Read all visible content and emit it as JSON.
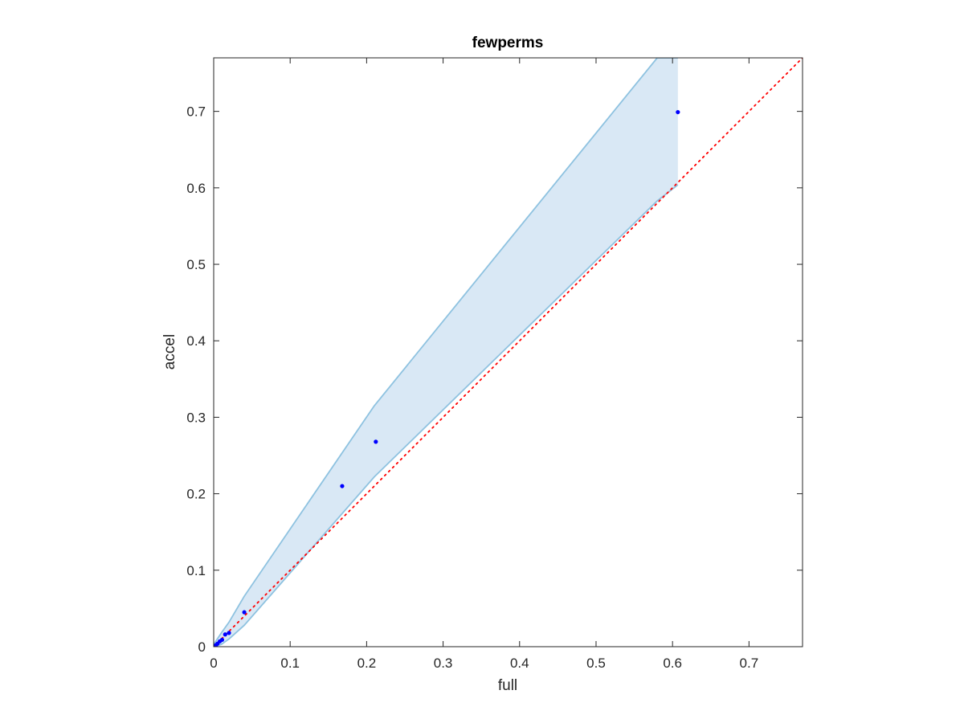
{
  "chart_data": {
    "type": "scatter",
    "title": "fewperms",
    "xlabel": "full",
    "ylabel": "accel",
    "xlim": [
      0,
      0.77
    ],
    "ylim": [
      0,
      0.77
    ],
    "xticks": [
      0,
      0.1,
      0.2,
      0.3,
      0.4,
      0.5,
      0.6,
      0.7
    ],
    "yticks": [
      0,
      0.1,
      0.2,
      0.3,
      0.4,
      0.5,
      0.6,
      0.7
    ],
    "xtick_labels": [
      "0",
      "0.1",
      "0.2",
      "0.3",
      "0.4",
      "0.5",
      "0.6",
      "0.7"
    ],
    "ytick_labels": [
      "0",
      "0.1",
      "0.2",
      "0.3",
      "0.4",
      "0.5",
      "0.6",
      "0.7"
    ],
    "grid": false,
    "series": [
      {
        "kind": "points",
        "color": "#0000ff",
        "x": [
          0.001,
          0.003,
          0.005,
          0.008,
          0.011,
          0.015,
          0.02,
          0.04,
          0.168,
          0.212,
          0.607
        ],
        "y": [
          0.001,
          0.002,
          0.004,
          0.007,
          0.009,
          0.016,
          0.018,
          0.045,
          0.21,
          0.268,
          0.699
        ]
      },
      {
        "kind": "band",
        "fill": "#d9e8f5",
        "stroke": "#8ec2e0",
        "x": [
          0,
          0.01,
          0.02,
          0.04,
          0.21,
          0.58,
          0.607
        ],
        "upper": [
          0.003,
          0.018,
          0.032,
          0.066,
          0.315,
          0.77,
          0.77
        ],
        "lower": [
          0,
          0.003,
          0.01,
          0.028,
          0.222,
          0.583,
          0.604
        ]
      },
      {
        "kind": "reference-line",
        "color": "#ff0000",
        "dash": "dotted",
        "x": [
          0,
          0.77
        ],
        "y": [
          0,
          0.77
        ]
      }
    ]
  }
}
